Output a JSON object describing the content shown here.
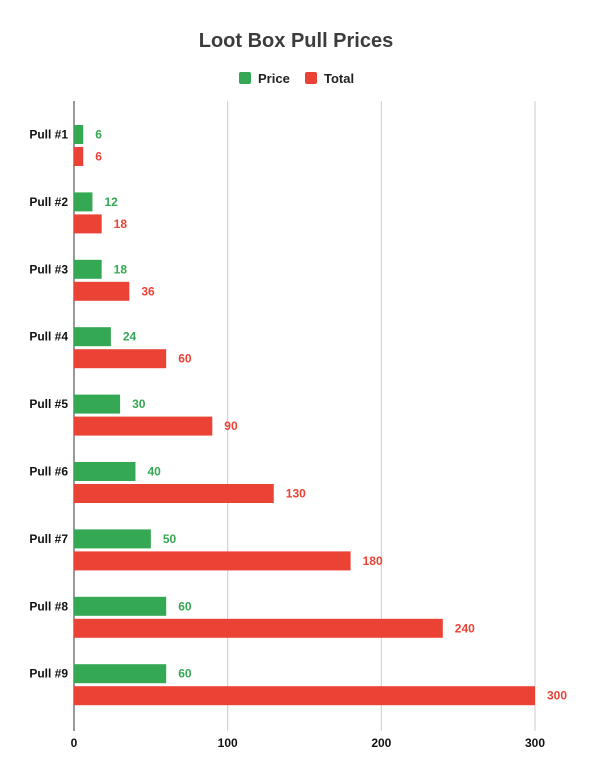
{
  "chart_data": {
    "type": "bar",
    "orientation": "horizontal",
    "title": "Loot Box Pull Prices",
    "xlabel": "",
    "ylabel": "",
    "categories": [
      "Pull #1",
      "Pull #2",
      "Pull #3",
      "Pull #4",
      "Pull #5",
      "Pull #6",
      "Pull #7",
      "Pull #8",
      "Pull #9"
    ],
    "series": [
      {
        "name": "Price",
        "color": "#34a853",
        "values": [
          6,
          12,
          18,
          24,
          30,
          40,
          50,
          60,
          60
        ]
      },
      {
        "name": "Total",
        "color": "#ea4335",
        "values": [
          6,
          18,
          36,
          60,
          90,
          130,
          180,
          240,
          300
        ]
      }
    ],
    "xlim": [
      0,
      300
    ],
    "xticks": [
      0,
      100,
      200,
      300
    ],
    "grid": true,
    "legend_position": "top",
    "data_labels": true
  }
}
